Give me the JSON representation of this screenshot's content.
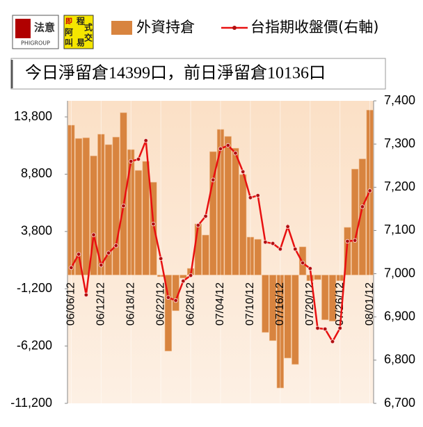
{
  "header": {
    "logo_main": "法意",
    "logo_sub": "PHIGROUP",
    "logo2_chars": [
      "即",
      "程",
      "式",
      "阿",
      "交",
      "叫",
      "易"
    ]
  },
  "chart_data": {
    "type": "bar_line",
    "subtitle": "今日淨留倉14399口，前日淨留倉10136口",
    "categories": [
      "06/06/12",
      null,
      null,
      null,
      "06/12/12",
      null,
      null,
      null,
      "06/18/12",
      null,
      null,
      null,
      "06/22/12",
      null,
      null,
      null,
      "06/28/12",
      null,
      null,
      null,
      "07/04/12",
      null,
      null,
      null,
      "07/10/12",
      null,
      null,
      null,
      "07/16/12",
      null,
      null,
      null,
      "07/20/12",
      null,
      null,
      null,
      "07/26/12",
      null,
      null,
      null,
      "08/01/12"
    ],
    "series": [
      {
        "name": "外資持倉",
        "type": "bar",
        "color": "#d8843f",
        "axis": "y",
        "values": [
          13080,
          11920,
          11980,
          10400,
          12290,
          11380,
          12040,
          14170,
          10950,
          9130,
          9920,
          8100,
          -150,
          -6640,
          -3120,
          -270,
          580,
          4460,
          3490,
          10770,
          12710,
          12100,
          11070,
          8770,
          3310,
          3120,
          -5010,
          -5730,
          -9860,
          -7250,
          -7800,
          2460,
          -500,
          -400,
          -3910,
          -4030,
          -500,
          4160,
          9250,
          10136,
          14399
        ]
      },
      {
        "name": "台指期收盤價(右軸)",
        "type": "line",
        "color": "#e81010",
        "axis": "y2",
        "values": [
          7014,
          7045,
          6951,
          7090,
          7020,
          7048,
          7065,
          7157,
          7260,
          7265,
          7308,
          7115,
          7035,
          6945,
          6938,
          6983,
          6996,
          7112,
          7133,
          7217,
          7289,
          7297,
          7279,
          7236,
          7176,
          7181,
          7073,
          7070,
          7057,
          7109,
          7057,
          7025,
          7012,
          6874,
          6872,
          6843,
          6874,
          7075,
          7077,
          7155,
          7192
        ]
      }
    ],
    "ylim": [
      -11200,
      15200
    ],
    "yticks": [
      {
        "value": -11200,
        "label": "-11,200"
      },
      {
        "value": -6200,
        "label": "-6,200"
      },
      {
        "value": -1200,
        "label": "-1,200"
      },
      {
        "value": 3800,
        "label": "3,800"
      },
      {
        "value": 8800,
        "label": "8,800"
      },
      {
        "value": 13800,
        "label": "13,800"
      }
    ],
    "y2lim": [
      6700,
      7400
    ],
    "y2ticks": [
      {
        "value": 6700,
        "label": "6,700"
      },
      {
        "value": 6800,
        "label": "6,800"
      },
      {
        "value": 6900,
        "label": "6,900"
      },
      {
        "value": 7000,
        "label": "7,000"
      },
      {
        "value": 7100,
        "label": "7,100"
      },
      {
        "value": 7200,
        "label": "7,200"
      },
      {
        "value": 7300,
        "label": "7,300"
      },
      {
        "value": 7400,
        "label": "7,400"
      }
    ],
    "legend": "top"
  }
}
